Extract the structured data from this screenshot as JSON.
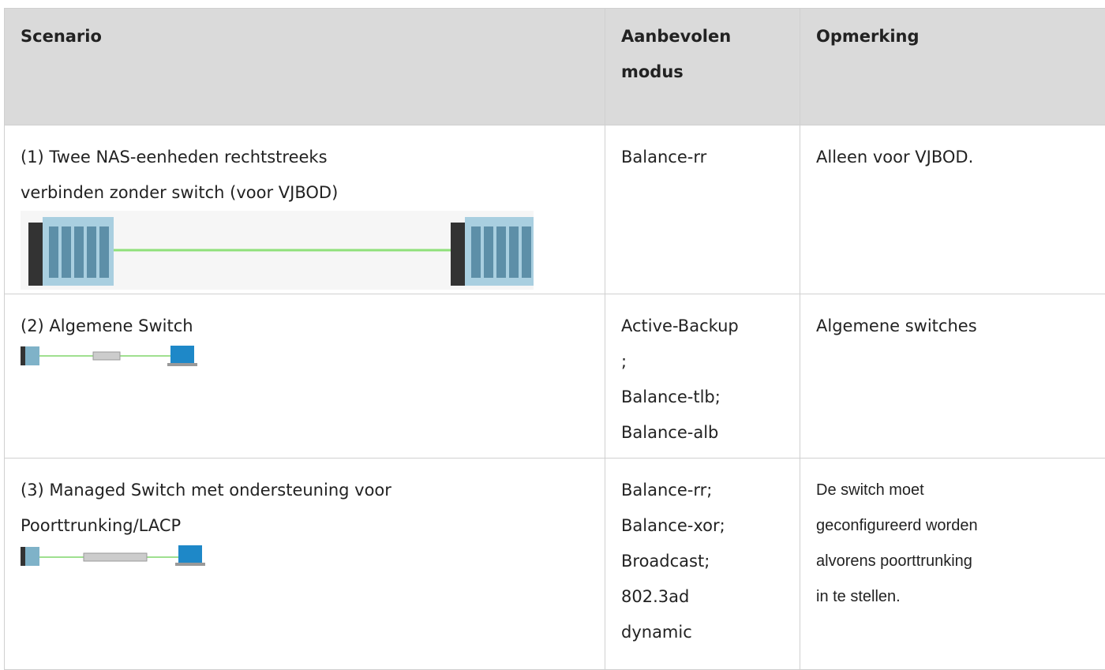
{
  "table": {
    "header": [
      "Scenario",
      "Aanbevolen modus",
      "Opmerking"
    ],
    "rows": [
      {
        "scenario": [
          "(1) Twee NAS-eenheden rechtstreeks",
          "verbinden zonder switch (voor VJBOD)"
        ],
        "mode": [
          "Balance-rr"
        ],
        "note": [
          "Alleen voor VJBOD."
        ]
      },
      {
        "scenario": [
          "(2) Algemene Switch"
        ],
        "mode": [
          "Active-Backup",
          ";",
          "Balance-tlb;",
          "Balance-alb"
        ],
        "note": [
          "Algemene switches"
        ]
      },
      {
        "scenario": [
          "(3) Managed Switch met ondersteuning voor",
          "Poorttrunking/LACP"
        ],
        "mode": [
          "Balance-rr;",
          "Balance-xor;",
          "Broadcast;",
          "802.3ad",
          "dynamic"
        ],
        "note": [
          "De switch moet",
          "geconfigureerd worden",
          "alvorens poorttrunking",
          "in te stellen."
        ]
      }
    ]
  }
}
